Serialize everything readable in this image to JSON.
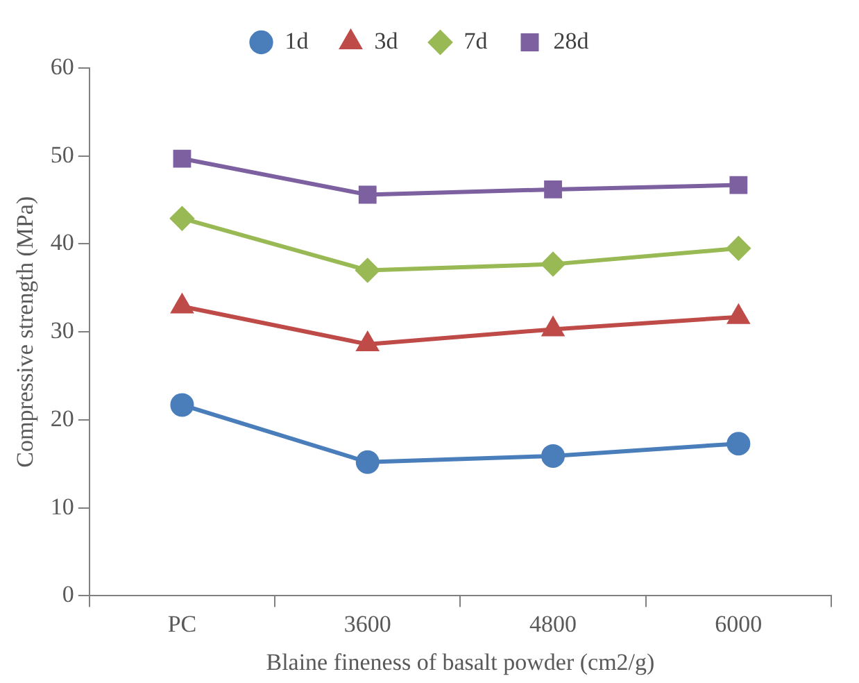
{
  "chart_data": {
    "type": "line",
    "xlabel": "Blaine fineness of basalt powder (cm2/g)",
    "ylabel": "Compressive strength (MPa)",
    "categories": [
      "PC",
      "3600",
      "4800",
      "6000"
    ],
    "ylim": [
      0,
      60
    ],
    "yticks": [
      0,
      10,
      20,
      30,
      40,
      50,
      60
    ],
    "grid": false,
    "legend": "top",
    "line_style": "solid",
    "series": [
      {
        "name": "1d",
        "color": "#4a7ebb",
        "marker": "circle",
        "values": [
          21.7,
          15.2,
          15.9,
          17.3
        ]
      },
      {
        "name": "3d",
        "color": "#be4b48",
        "marker": "triangle",
        "values": [
          32.9,
          28.6,
          30.3,
          31.7
        ]
      },
      {
        "name": "7d",
        "color": "#98b954",
        "marker": "diamond",
        "values": [
          42.9,
          37.0,
          37.7,
          39.5
        ]
      },
      {
        "name": "28d",
        "color": "#7d60a0",
        "marker": "square",
        "values": [
          49.7,
          45.6,
          46.2,
          46.7
        ]
      }
    ]
  }
}
